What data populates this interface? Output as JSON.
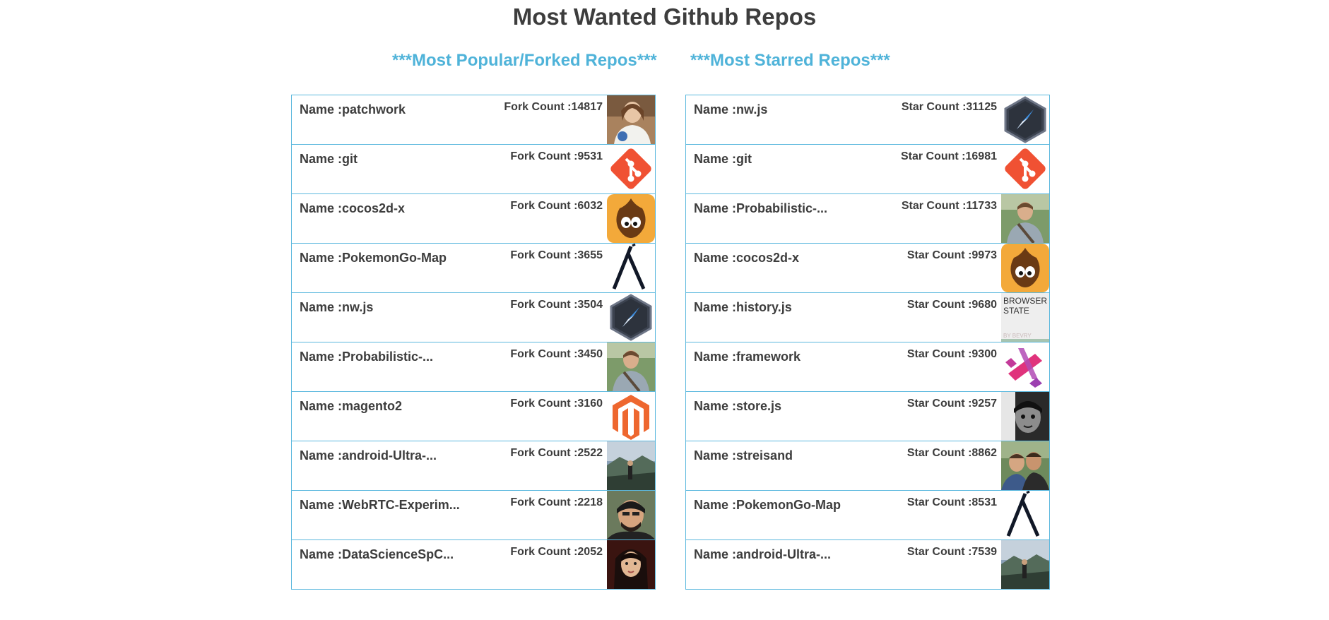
{
  "page": {
    "title": "Most Wanted Github Repos"
  },
  "forked": {
    "heading": "***Most Popular/Forked Repos***",
    "repos": [
      {
        "name": "Name :patchwork",
        "count": "Fork Count :14817",
        "avatar": "woman-photo"
      },
      {
        "name": "Name :git",
        "count": "Fork Count :9531",
        "avatar": "git-logo"
      },
      {
        "name": "Name :cocos2d-x",
        "count": "Fork Count :6032",
        "avatar": "cocos2d-logo"
      },
      {
        "name": "Name :PokemonGo-Map",
        "count": "Fork Count :3655",
        "avatar": "lambda-logo"
      },
      {
        "name": "Name :nw.js",
        "count": "Fork Count :3504",
        "avatar": "nwjs-compass-logo"
      },
      {
        "name": "Name :Probabilistic-...",
        "count": "Fork Count :3450",
        "avatar": "man-outdoor-photo"
      },
      {
        "name": "Name :magento2",
        "count": "Fork Count :3160",
        "avatar": "magento-logo"
      },
      {
        "name": "Name :android-Ultra-...",
        "count": "Fork Count :2522",
        "avatar": "landscape-photo"
      },
      {
        "name": "Name :WebRTC-Experim...",
        "count": "Fork Count :2218",
        "avatar": "man-portrait-photo"
      },
      {
        "name": "Name :DataScienceSpC...",
        "count": "Fork Count :2052",
        "avatar": "woman-portrait-photo"
      }
    ]
  },
  "starred": {
    "heading": "***Most Starred Repos***",
    "repos": [
      {
        "name": "Name :nw.js",
        "count": "Star Count :31125",
        "avatar": "nwjs-compass-logo"
      },
      {
        "name": "Name :git",
        "count": "Star Count :16981",
        "avatar": "git-logo"
      },
      {
        "name": "Name :Probabilistic-...",
        "count": "Star Count :11733",
        "avatar": "man-outdoor-photo"
      },
      {
        "name": "Name :cocos2d-x",
        "count": "Star Count :9973",
        "avatar": "cocos2d-logo"
      },
      {
        "name": "Name :history.js",
        "count": "Star Count :9680",
        "avatar": "browserstate-logo",
        "avatar_text": [
          "BROWSER",
          "STATE"
        ],
        "avatar_subtext": "BY BEVRY"
      },
      {
        "name": "Name :framework",
        "count": "Star Count :9300",
        "avatar": "framework-logo"
      },
      {
        "name": "Name :store.js",
        "count": "Star Count :9257",
        "avatar": "bw-portrait-photo"
      },
      {
        "name": "Name :streisand",
        "count": "Star Count :8862",
        "avatar": "two-men-photo"
      },
      {
        "name": "Name :PokemonGo-Map",
        "count": "Star Count :8531",
        "avatar": "lambda-logo"
      },
      {
        "name": "Name :android-Ultra-...",
        "count": "Star Count :7539",
        "avatar": "landscape-photo"
      }
    ]
  },
  "colors": {
    "title": "#3d3d3d",
    "heading": "#4fb3d9",
    "border": "#5bb8de",
    "text": "#3d3d3d"
  }
}
